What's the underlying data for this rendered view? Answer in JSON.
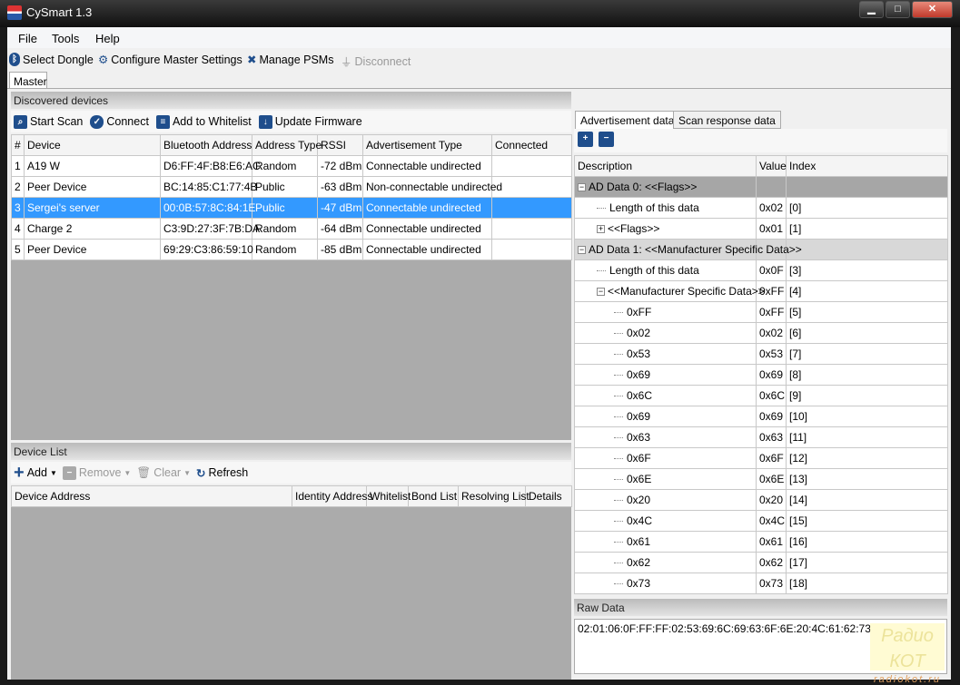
{
  "window": {
    "title": "CySmart 1.3",
    "minimize": "▁",
    "maximize": "□",
    "close": "✕"
  },
  "menu": [
    "File",
    "Tools",
    "Help"
  ],
  "toolbar": {
    "select_dongle": "Select Dongle",
    "configure": "Configure Master Settings",
    "manage_psms": "Manage PSMs",
    "disconnect": "Disconnect"
  },
  "tab": "Master",
  "discovered": {
    "title": "Discovered devices",
    "start_scan": "Start Scan",
    "connect": "Connect",
    "add_whitelist": "Add to Whitelist",
    "update_fw": "Update Firmware",
    "columns": [
      "#",
      "Device",
      "Bluetooth Address",
      "Address Type",
      "RSSI",
      "Advertisement Type",
      "Connected"
    ],
    "rows": [
      [
        "1",
        "A19 W",
        "D6:FF:4F:B8:E6:AC",
        "Random",
        "-72 dBm",
        "Connectable undirected",
        ""
      ],
      [
        "2",
        "Peer Device",
        "BC:14:85:C1:77:4B",
        "Public",
        "-63 dBm",
        "Non-connectable undirected",
        ""
      ],
      [
        "3",
        "Sergei's server",
        "00:0B:57:8C:84:1E",
        "Public",
        "-47 dBm",
        "Connectable undirected",
        ""
      ],
      [
        "4",
        "Charge 2",
        "C3:9D:27:3F:7B:DA",
        "Random",
        "-64 dBm",
        "Connectable undirected",
        ""
      ],
      [
        "5",
        "Peer Device",
        "69:29:C3:86:59:10",
        "Random",
        "-85 dBm",
        "Connectable undirected",
        ""
      ]
    ],
    "selected_row": 2
  },
  "device_list": {
    "title": "Device List",
    "add": "Add",
    "remove": "Remove",
    "clear": "Clear",
    "refresh": "Refresh",
    "columns": [
      "Device Address",
      "Identity Address",
      "Whitelist",
      "Bond List",
      "Resolving List",
      "Details"
    ]
  },
  "adv": {
    "tabs": [
      "Advertisement data",
      "Scan response data"
    ],
    "expand_icon": "expand-all-icon",
    "collapse_icon": "collapse-all-icon",
    "columns": [
      "Description",
      "Value",
      "Index"
    ],
    "rows": [
      {
        "level": 0,
        "exp": "minus",
        "desc": "AD Data 0: <<Flags>>",
        "value": "",
        "index": "",
        "group": "g0"
      },
      {
        "level": 1,
        "desc": "Length of this data",
        "value": "0x02",
        "index": "[0]"
      },
      {
        "level": 1,
        "exp": "plus",
        "desc": "<<Flags>>",
        "value": "0x01",
        "index": "[1]"
      },
      {
        "level": 0,
        "exp": "minus",
        "desc": "AD Data 1: <<Manufacturer Specific Data>>",
        "value": "",
        "index": "",
        "group": "g1"
      },
      {
        "level": 1,
        "desc": "Length of this data",
        "value": "0x0F",
        "index": "[3]"
      },
      {
        "level": 1,
        "exp": "minus",
        "desc": "<<Manufacturer Specific Data>>",
        "value": "0xFF",
        "index": "[4]"
      },
      {
        "level": 2,
        "desc": "0xFF",
        "value": "0xFF",
        "index": "[5]"
      },
      {
        "level": 2,
        "desc": "0x02",
        "value": "0x02",
        "index": "[6]"
      },
      {
        "level": 2,
        "desc": "0x53",
        "value": "0x53",
        "index": "[7]"
      },
      {
        "level": 2,
        "desc": "0x69",
        "value": "0x69",
        "index": "[8]"
      },
      {
        "level": 2,
        "desc": "0x6C",
        "value": "0x6C",
        "index": "[9]"
      },
      {
        "level": 2,
        "desc": "0x69",
        "value": "0x69",
        "index": "[10]"
      },
      {
        "level": 2,
        "desc": "0x63",
        "value": "0x63",
        "index": "[11]"
      },
      {
        "level": 2,
        "desc": "0x6F",
        "value": "0x6F",
        "index": "[12]"
      },
      {
        "level": 2,
        "desc": "0x6E",
        "value": "0x6E",
        "index": "[13]"
      },
      {
        "level": 2,
        "desc": "0x20",
        "value": "0x20",
        "index": "[14]"
      },
      {
        "level": 2,
        "desc": "0x4C",
        "value": "0x4C",
        "index": "[15]"
      },
      {
        "level": 2,
        "desc": "0x61",
        "value": "0x61",
        "index": "[16]"
      },
      {
        "level": 2,
        "desc": "0x62",
        "value": "0x62",
        "index": "[17]"
      },
      {
        "level": 2,
        "desc": "0x73",
        "value": "0x73",
        "index": "[18]"
      }
    ]
  },
  "raw": {
    "title": "Raw Data",
    "value": "02:01:06:0F:FF:FF:02:53:69:6C:69:63:6F:6E:20:4C:61:62:73"
  },
  "watermark": {
    "line1": "Радио КОТ",
    "line2": "radiokot.ru"
  }
}
